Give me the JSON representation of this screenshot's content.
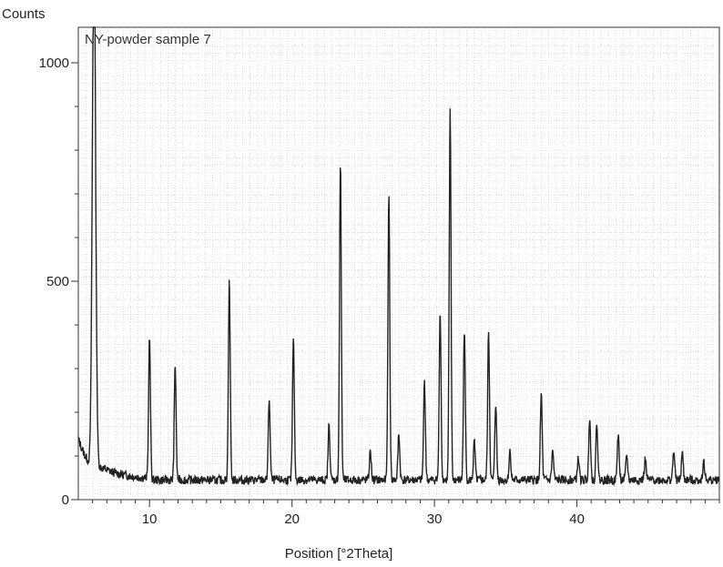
{
  "chart_data": {
    "type": "line",
    "title": "NY-powder sample 7",
    "ylabel": "Counts",
    "xlabel": "Position [°2Theta]",
    "xlim": [
      5,
      50
    ],
    "ylim": [
      0,
      1000
    ],
    "x_ticks": [
      10,
      20,
      30,
      40
    ],
    "y_ticks": [
      0,
      500,
      1000
    ],
    "y_tick_labels": [
      "0",
      "500",
      "1000"
    ],
    "grid": true,
    "background_level": 45,
    "peaks": [
      {
        "x": 6.1,
        "y": 1240
      },
      {
        "x": 10.0,
        "y": 340
      },
      {
        "x": 11.8,
        "y": 280
      },
      {
        "x": 15.6,
        "y": 470
      },
      {
        "x": 18.4,
        "y": 200
      },
      {
        "x": 20.1,
        "y": 335
      },
      {
        "x": 22.6,
        "y": 140
      },
      {
        "x": 23.4,
        "y": 740
      },
      {
        "x": 25.5,
        "y": 80
      },
      {
        "x": 26.8,
        "y": 670
      },
      {
        "x": 27.5,
        "y": 120
      },
      {
        "x": 29.3,
        "y": 240
      },
      {
        "x": 30.4,
        "y": 400
      },
      {
        "x": 31.1,
        "y": 855
      },
      {
        "x": 32.1,
        "y": 360
      },
      {
        "x": 32.8,
        "y": 100
      },
      {
        "x": 33.8,
        "y": 355
      },
      {
        "x": 34.3,
        "y": 190
      },
      {
        "x": 35.3,
        "y": 80
      },
      {
        "x": 37.5,
        "y": 210
      },
      {
        "x": 38.3,
        "y": 80
      },
      {
        "x": 40.1,
        "y": 65
      },
      {
        "x": 40.9,
        "y": 160
      },
      {
        "x": 41.4,
        "y": 145
      },
      {
        "x": 42.9,
        "y": 120
      },
      {
        "x": 43.5,
        "y": 70
      },
      {
        "x": 44.8,
        "y": 60
      },
      {
        "x": 46.8,
        "y": 80
      },
      {
        "x": 47.4,
        "y": 75
      },
      {
        "x": 48.9,
        "y": 55
      }
    ],
    "colors": {
      "trace": "#222222",
      "grid": "#c8c8c8",
      "axis": "#333333",
      "text": "#222222"
    }
  }
}
